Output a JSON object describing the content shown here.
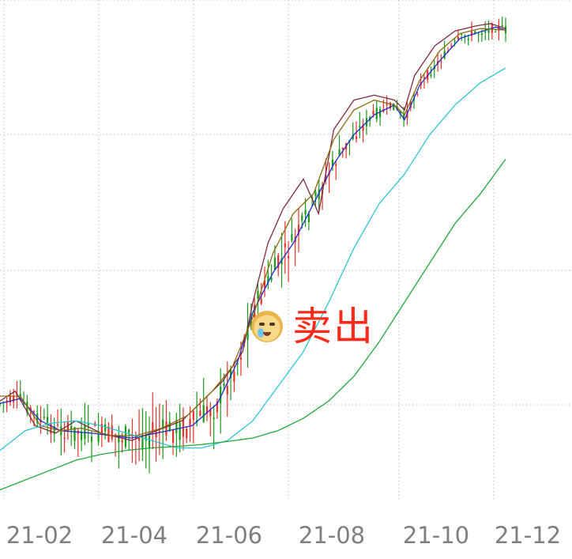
{
  "chart_data": {
    "type": "candlestick",
    "title": "",
    "x_tick_labels": [
      "21-02",
      "21-04",
      "21-06",
      "21-08",
      "21-10",
      "21-12"
    ],
    "y_tick_labels": [
      "",
      "",
      "",
      ""
    ],
    "grid": true,
    "ylim": [
      0,
      100
    ],
    "x_range": [
      "21-01",
      "21-12"
    ],
    "up_color": "#e8312a",
    "down_color": "#1a9a1a",
    "series": [
      {
        "color": "#1e2fd0",
        "keypoints": [
          [
            0,
            80.5
          ],
          [
            0.04,
            79.5
          ],
          [
            0.08,
            84
          ],
          [
            0.12,
            86
          ],
          [
            0.18,
            86.5
          ],
          [
            0.26,
            87.5
          ],
          [
            0.31,
            86.5
          ],
          [
            0.38,
            85
          ],
          [
            0.43,
            80.5
          ],
          [
            0.47,
            72
          ],
          [
            0.5,
            62
          ],
          [
            0.54,
            54
          ],
          [
            0.58,
            48
          ],
          [
            0.62,
            40
          ],
          [
            0.66,
            32
          ],
          [
            0.7,
            26
          ],
          [
            0.74,
            22
          ],
          [
            0.78,
            20
          ],
          [
            0.8,
            23
          ],
          [
            0.83,
            16
          ],
          [
            0.87,
            11
          ],
          [
            0.91,
            6.5
          ],
          [
            0.94,
            5.5
          ],
          [
            0.98,
            4.2
          ],
          [
            1,
            4.8
          ]
        ]
      },
      {
        "color": "#7e2a3a",
        "keypoints": [
          [
            0,
            80
          ],
          [
            0.03,
            78
          ],
          [
            0.07,
            85
          ],
          [
            0.11,
            86.5
          ],
          [
            0.15,
            84
          ],
          [
            0.2,
            86.5
          ],
          [
            0.26,
            88
          ],
          [
            0.31,
            86
          ],
          [
            0.36,
            84
          ],
          [
            0.4,
            80
          ],
          [
            0.44,
            76
          ],
          [
            0.48,
            70
          ],
          [
            0.5,
            60
          ],
          [
            0.53,
            48
          ],
          [
            0.56,
            41
          ],
          [
            0.6,
            35
          ],
          [
            0.63,
            42
          ],
          [
            0.66,
            25
          ],
          [
            0.7,
            19
          ],
          [
            0.74,
            18
          ],
          [
            0.78,
            19
          ],
          [
            0.8,
            21
          ],
          [
            0.82,
            14
          ],
          [
            0.86,
            8
          ],
          [
            0.9,
            5
          ],
          [
            0.94,
            4
          ],
          [
            0.97,
            3.5
          ],
          [
            1,
            4.5
          ]
        ]
      },
      {
        "color": "#8a6a10",
        "keypoints": [
          [
            0,
            79
          ],
          [
            0.04,
            79
          ],
          [
            0.08,
            85
          ],
          [
            0.12,
            86
          ],
          [
            0.16,
            85.5
          ],
          [
            0.22,
            87
          ],
          [
            0.27,
            87
          ],
          [
            0.32,
            85.5
          ],
          [
            0.37,
            83
          ],
          [
            0.42,
            78
          ],
          [
            0.46,
            73
          ],
          [
            0.5,
            63
          ],
          [
            0.54,
            50
          ],
          [
            0.58,
            42
          ],
          [
            0.62,
            38
          ],
          [
            0.66,
            27
          ],
          [
            0.7,
            21
          ],
          [
            0.74,
            19
          ],
          [
            0.78,
            20
          ],
          [
            0.8,
            22
          ],
          [
            0.83,
            15
          ],
          [
            0.87,
            9
          ],
          [
            0.91,
            5.5
          ],
          [
            0.95,
            4.5
          ],
          [
            1,
            4.8
          ]
        ]
      },
      {
        "color": "#2bc4d8",
        "keypoints": [
          [
            0,
            90
          ],
          [
            0.05,
            86
          ],
          [
            0.1,
            84.5
          ],
          [
            0.15,
            84
          ],
          [
            0.2,
            85
          ],
          [
            0.25,
            86.5
          ],
          [
            0.3,
            88
          ],
          [
            0.35,
            89.5
          ],
          [
            0.4,
            89.5
          ],
          [
            0.45,
            88
          ],
          [
            0.5,
            84
          ],
          [
            0.55,
            77
          ],
          [
            0.6,
            70
          ],
          [
            0.65,
            60
          ],
          [
            0.7,
            49
          ],
          [
            0.75,
            40
          ],
          [
            0.8,
            34
          ],
          [
            0.85,
            26
          ],
          [
            0.9,
            20
          ],
          [
            0.95,
            15.5
          ],
          [
            1,
            12.5
          ]
        ]
      },
      {
        "color": "#1fa83a",
        "keypoints": [
          [
            0,
            98
          ],
          [
            0.05,
            96
          ],
          [
            0.1,
            94
          ],
          [
            0.15,
            92
          ],
          [
            0.2,
            90.8
          ],
          [
            0.25,
            90
          ],
          [
            0.3,
            89.5
          ],
          [
            0.35,
            89.2
          ],
          [
            0.4,
            88.8
          ],
          [
            0.45,
            88.2
          ],
          [
            0.5,
            87.5
          ],
          [
            0.55,
            86
          ],
          [
            0.6,
            83.5
          ],
          [
            0.65,
            80
          ],
          [
            0.7,
            75
          ],
          [
            0.75,
            68
          ],
          [
            0.8,
            60
          ],
          [
            0.85,
            52
          ],
          [
            0.9,
            44
          ],
          [
            0.95,
            38
          ],
          [
            1,
            31
          ]
        ]
      }
    ]
  },
  "annotation": {
    "icon": "crying-cat-emoji-icon",
    "label": "卖出"
  }
}
